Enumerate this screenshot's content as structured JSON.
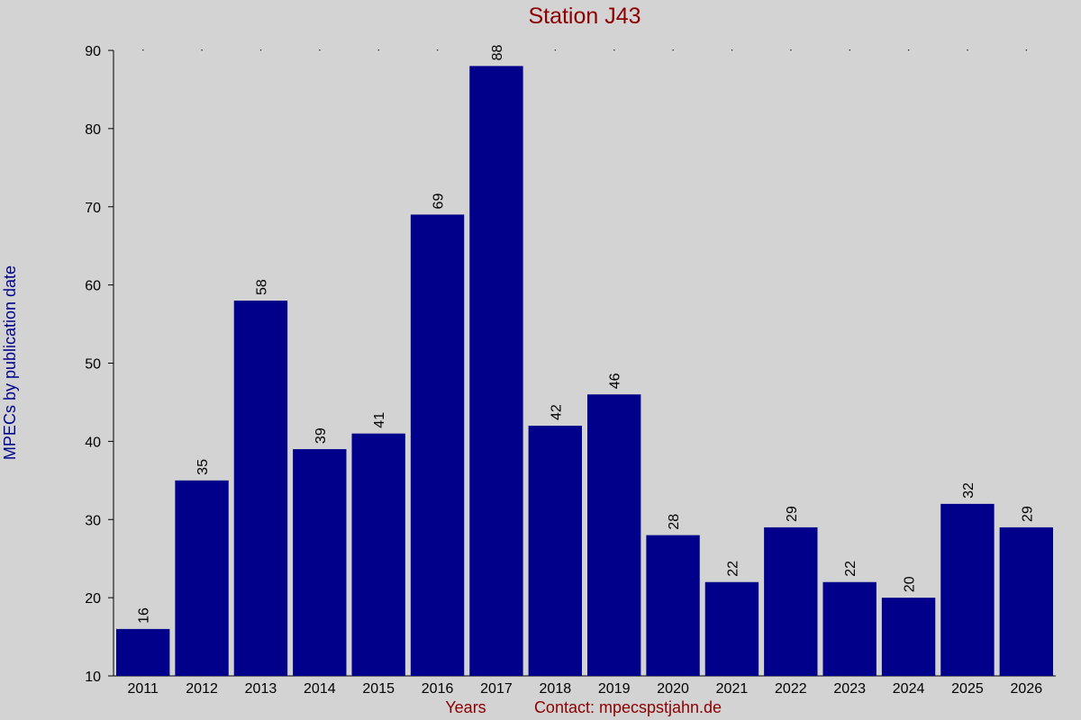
{
  "chart_data": {
    "type": "bar",
    "title": "Station J43",
    "xlabel": "Years",
    "ylabel": "MPECs by publication date",
    "footer_note": "Contact: mpecspstjahn.de",
    "categories": [
      "2011",
      "2012",
      "2013",
      "2014",
      "2015",
      "2016",
      "2017",
      "2018",
      "2019",
      "2020",
      "2021",
      "2022",
      "2023",
      "2024",
      "2025",
      "2026"
    ],
    "values": [
      16,
      35,
      58,
      39,
      41,
      69,
      88,
      42,
      46,
      28,
      22,
      29,
      22,
      20,
      32,
      29
    ],
    "ylim": [
      10,
      90
    ],
    "yticks": [
      10,
      20,
      30,
      40,
      50,
      60,
      70,
      80,
      90
    ],
    "bar_color": "#00008b",
    "title_color": "#8b0000",
    "ylabel_color": "#00008b",
    "background": "#d3d3d3",
    "grid": "dotted top markers"
  }
}
